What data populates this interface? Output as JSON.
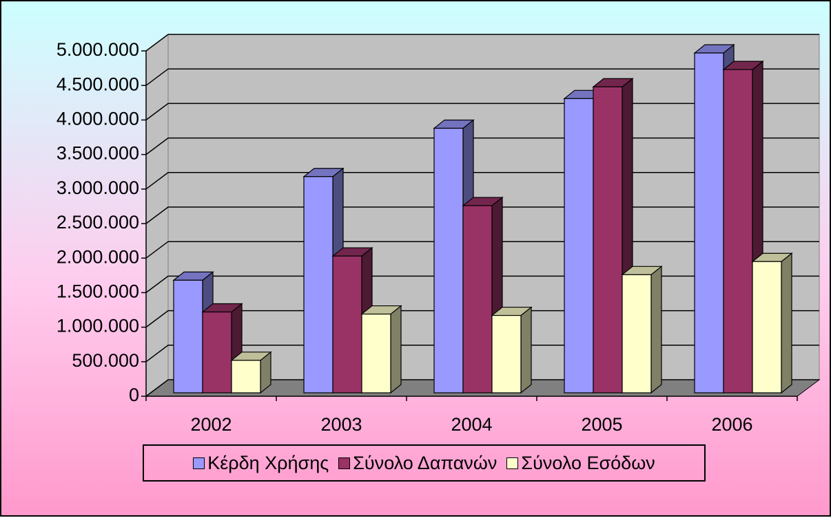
{
  "chart_data": {
    "type": "bar3d",
    "categories": [
      "2002",
      "2003",
      "2004",
      "2005",
      "2006"
    ],
    "series": [
      {
        "name": "Κέρδη Χρήσης",
        "color": "#9999ff",
        "values": [
          1630000,
          3130000,
          3830000,
          4260000,
          4920000
        ]
      },
      {
        "name": "Σύνολο Δαπανών",
        "color": "#993366",
        "values": [
          1170000,
          1980000,
          2710000,
          4430000,
          4680000
        ]
      },
      {
        "name": "Σύνολο Εσόδων",
        "color": "#ffffcc",
        "values": [
          470000,
          1140000,
          1120000,
          1710000,
          1900000
        ]
      }
    ],
    "ylim": [
      0,
      5000000
    ],
    "yticks": [
      0,
      {
        "value": 500000,
        "label": "500.000"
      },
      {
        "value": 1000000,
        "label": "1.000.000"
      },
      {
        "value": 1500000,
        "label": "1.500.000"
      },
      {
        "value": 2000000,
        "label": "2.000.000"
      },
      {
        "value": 2500000,
        "label": "2.500.000"
      },
      {
        "value": 3000000,
        "label": "3.000.000"
      },
      {
        "value": 3500000,
        "label": "3.500.000"
      },
      {
        "value": 4000000,
        "label": "4.000.000"
      },
      {
        "value": 4500000,
        "label": "4.500.000"
      },
      {
        "value": 5000000,
        "label": "5.000.000"
      }
    ],
    "grid": true
  }
}
